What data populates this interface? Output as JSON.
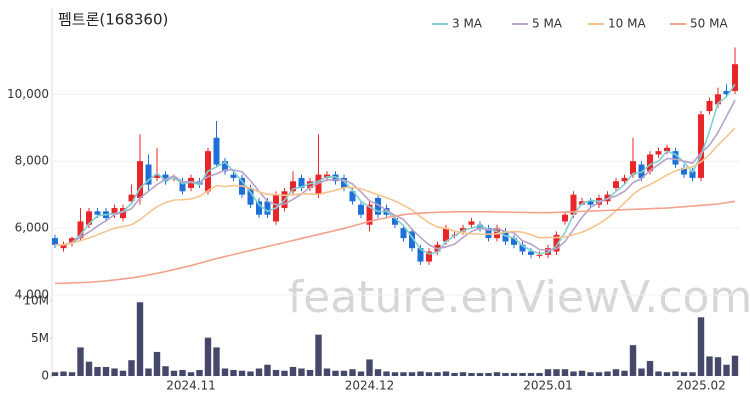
{
  "chart_data": [
    {
      "type": "candlestick",
      "title": "펨트론(168360)",
      "watermark": "feature.enViewV.com",
      "up_color": "#e8262a",
      "down_color": "#1e6fd8",
      "ylim": [
        4000,
        12400
      ],
      "yticks": [
        {
          "value": 4000,
          "label": "4,000"
        },
        {
          "value": 6000,
          "label": "6,000"
        },
        {
          "value": 8000,
          "label": "8,000"
        },
        {
          "value": 10000,
          "label": "10,000"
        }
      ],
      "open": [
        5700,
        5400,
        5550,
        5700,
        6100,
        6500,
        6500,
        6400,
        6300,
        6800,
        6900,
        7900,
        7500,
        7600,
        7500,
        7400,
        7200,
        7400,
        7100,
        8700,
        8000,
        7600,
        7500,
        7200,
        6800,
        6800,
        6200,
        6600,
        7100,
        7500,
        7200,
        7000,
        7500,
        7600,
        7500,
        7100,
        6700,
        6100,
        6900,
        6600,
        6300,
        6000,
        5900,
        5400,
        5000,
        5300,
        5600,
        5800,
        5900,
        6100,
        6100,
        6000,
        5700,
        5900,
        5700,
        5500,
        5300,
        5200,
        5200,
        5300,
        6200,
        6400,
        6700,
        6800,
        6700,
        6800,
        7200,
        7400,
        7600,
        7900,
        7700,
        8200,
        8300,
        8300,
        7800,
        7700,
        7500,
        9500,
        9700,
        10100,
        10100
      ],
      "high": [
        5800,
        5600,
        5750,
        6600,
        6600,
        6600,
        6600,
        6700,
        6700,
        7300,
        8800,
        8200,
        8400,
        7700,
        7600,
        7500,
        7600,
        7500,
        8400,
        9200,
        8100,
        7700,
        7600,
        7300,
        6900,
        6900,
        7100,
        7200,
        7700,
        7600,
        7500,
        8800,
        7700,
        7700,
        7600,
        7200,
        6800,
        6800,
        7000,
        6700,
        6400,
        6100,
        6000,
        5500,
        5400,
        5600,
        6100,
        5900,
        6100,
        6300,
        6200,
        6100,
        6100,
        6000,
        5800,
        5600,
        5400,
        5300,
        5500,
        5900,
        6500,
        7100,
        6900,
        6900,
        7000,
        7100,
        7500,
        7600,
        8700,
        8000,
        8300,
        8400,
        8500,
        8400,
        7900,
        7800,
        9500,
        9900,
        10200,
        10300,
        11400
      ],
      "low": [
        5400,
        5300,
        5450,
        5600,
        6000,
        6300,
        6200,
        6300,
        6200,
        6700,
        6700,
        7100,
        7400,
        7300,
        7400,
        7000,
        7100,
        7200,
        7000,
        7800,
        7600,
        7400,
        6900,
        6600,
        6300,
        6300,
        6100,
        6500,
        7000,
        7100,
        7100,
        6900,
        7400,
        7300,
        7100,
        6700,
        6300,
        5900,
        6300,
        6300,
        6000,
        5600,
        5300,
        4900,
        4900,
        5200,
        5500,
        5700,
        5800,
        6000,
        5900,
        5600,
        5600,
        5500,
        5400,
        5200,
        5100,
        5100,
        5100,
        5200,
        6100,
        6300,
        6700,
        6600,
        6600,
        6700,
        7100,
        7300,
        7500,
        7400,
        7600,
        8100,
        8200,
        7800,
        7500,
        7400,
        7400,
        9400,
        9600,
        9900,
        10000
      ],
      "close": [
        5500,
        5500,
        5700,
        6200,
        6500,
        6400,
        6300,
        6600,
        6600,
        7000,
        8000,
        7300,
        7600,
        7400,
        7500,
        7100,
        7500,
        7300,
        8300,
        7900,
        7700,
        7500,
        7000,
        6700,
        6400,
        6400,
        7000,
        7100,
        7400,
        7200,
        7400,
        7600,
        7600,
        7400,
        7200,
        6800,
        6400,
        6700,
        6400,
        6400,
        6100,
        5700,
        5400,
        5000,
        5300,
        5500,
        6000,
        5800,
        6000,
        6200,
        6000,
        5700,
        6000,
        5600,
        5500,
        5300,
        5200,
        5200,
        5400,
        5800,
        6400,
        7000,
        6800,
        6700,
        6900,
        7000,
        7400,
        7500,
        8000,
        7500,
        8200,
        8300,
        8400,
        7900,
        7600,
        7500,
        9400,
        9800,
        10000,
        10000,
        10900
      ],
      "series": [
        {
          "name": "3 MA",
          "color": "#7fd0d0",
          "values": [
            5500,
            5500,
            5570,
            5800,
            6130,
            6370,
            6400,
            6430,
            6500,
            6730,
            7200,
            7430,
            7630,
            7430,
            7500,
            7330,
            7370,
            7300,
            7700,
            7830,
            7970,
            7700,
            7400,
            7070,
            6700,
            6500,
            6600,
            6830,
            7170,
            7230,
            7330,
            7400,
            7530,
            7530,
            7400,
            7130,
            6800,
            6630,
            6500,
            6500,
            6300,
            6070,
            5730,
            5370,
            5230,
            5270,
            5600,
            5770,
            5930,
            6000,
            6070,
            5970,
            5900,
            5770,
            5700,
            5470,
            5330,
            5230,
            5270,
            5470,
            5870,
            6400,
            6730,
            6830,
            6800,
            6870,
            7100,
            7300,
            7630,
            7670,
            7900,
            8000,
            8300,
            8200,
            7970,
            7670,
            8170,
            8900,
            9730,
            9930,
            10300
          ]
        },
        {
          "name": "5 MA",
          "color": "#b8a2c8",
          "values": [
            5500,
            5500,
            5570,
            5730,
            5880,
            6060,
            6220,
            6400,
            6480,
            6580,
            6900,
            7100,
            7300,
            7460,
            7560,
            7380,
            7380,
            7360,
            7540,
            7620,
            7740,
            7740,
            7680,
            7420,
            7100,
            6800,
            6700,
            6720,
            6860,
            7020,
            7220,
            7340,
            7440,
            7440,
            7440,
            7320,
            7080,
            6820,
            6700,
            6540,
            6380,
            6260,
            5960,
            5720,
            5500,
            5380,
            5440,
            5520,
            5720,
            5900,
            6000,
            5940,
            5980,
            5900,
            5860,
            5620,
            5520,
            5360,
            5340,
            5380,
            5600,
            5960,
            6320,
            6620,
            6760,
            6880,
            6960,
            7100,
            7360,
            7480,
            7720,
            7900,
            8080,
            8060,
            8000,
            7940,
            8240,
            8480,
            8860,
            9340,
            9820
          ]
        },
        {
          "name": "10 MA",
          "color": "#f5c48e",
          "values": [
            5500,
            5500,
            5550,
            5630,
            5700,
            5800,
            5900,
            6000,
            6050,
            6100,
            6250,
            6450,
            6640,
            6760,
            6840,
            6850,
            6870,
            6950,
            7120,
            7270,
            7240,
            7270,
            7260,
            7190,
            7080,
            7010,
            7000,
            6980,
            6990,
            7030,
            7020,
            7010,
            7070,
            7130,
            7210,
            7220,
            7170,
            7090,
            6990,
            6910,
            6810,
            6680,
            6540,
            6340,
            6160,
            6030,
            5990,
            5910,
            5860,
            5830,
            5820,
            5820,
            5830,
            5880,
            5900,
            5880,
            5800,
            5710,
            5720,
            5720,
            5730,
            5800,
            5880,
            5990,
            6130,
            6300,
            6520,
            6750,
            7010,
            7190,
            7300,
            7440,
            7590,
            7710,
            7780,
            7830,
            7980,
            8200,
            8480,
            8730,
            9000
          ]
        },
        {
          "name": "50 MA",
          "color": "#f4a28c",
          "values": [
            4350,
            4350,
            4360,
            4370,
            4380,
            4400,
            4420,
            4450,
            4480,
            4510,
            4550,
            4600,
            4650,
            4700,
            4760,
            4820,
            4880,
            4950,
            5020,
            5090,
            5150,
            5210,
            5270,
            5330,
            5390,
            5450,
            5510,
            5570,
            5630,
            5690,
            5750,
            5810,
            5870,
            5930,
            5990,
            6060,
            6130,
            6200,
            6260,
            6310,
            6360,
            6400,
            6430,
            6450,
            6460,
            6470,
            6480,
            6490,
            6490,
            6490,
            6490,
            6490,
            6480,
            6480,
            6470,
            6470,
            6460,
            6460,
            6460,
            6470,
            6480,
            6490,
            6500,
            6510,
            6520,
            6530,
            6540,
            6550,
            6560,
            6570,
            6580,
            6590,
            6600,
            6620,
            6640,
            6660,
            6680,
            6700,
            6720,
            6760,
            6800
          ]
        }
      ]
    },
    {
      "type": "bar",
      "color": "#45486a",
      "ylim": [
        0,
        10500000
      ],
      "yticks": [
        0,
        {
          "value": 5000000,
          "label": "5M"
        },
        {
          "value": 10000000,
          "label": "10M"
        }
      ],
      "categories": [
        null,
        null,
        null,
        null,
        null,
        null,
        null,
        null,
        null,
        null,
        null,
        null,
        null,
        null,
        null,
        null,
        "2024.11",
        null,
        null,
        null,
        null,
        null,
        null,
        null,
        null,
        null,
        null,
        null,
        null,
        null,
        null,
        null,
        null,
        null,
        null,
        null,
        null,
        "2024.12",
        null,
        null,
        null,
        null,
        null,
        null,
        null,
        null,
        null,
        null,
        null,
        null,
        null,
        null,
        null,
        null,
        null,
        null,
        null,
        null,
        "2025.01",
        null,
        null,
        null,
        null,
        null,
        null,
        null,
        null,
        null,
        null,
        null,
        null,
        null,
        null,
        null,
        null,
        null,
        "2025.02",
        null,
        null,
        null,
        null
      ],
      "values": [
        500000,
        600000,
        500000,
        3800000,
        1900000,
        1200000,
        1200000,
        1000000,
        700000,
        2100000,
        9800000,
        1000000,
        3200000,
        1300000,
        700000,
        800000,
        500000,
        800000,
        5100000,
        3800000,
        1000000,
        800000,
        700000,
        600000,
        1000000,
        1500000,
        800000,
        700000,
        1200000,
        1000000,
        800000,
        5500000,
        1000000,
        700000,
        700000,
        900000,
        600000,
        2200000,
        900000,
        600000,
        500000,
        500000,
        500000,
        600000,
        500000,
        500000,
        600000,
        400000,
        500000,
        400000,
        400000,
        400000,
        500000,
        400000,
        400000,
        400000,
        400000,
        400000,
        900000,
        900000,
        900000,
        600000,
        700000,
        500000,
        500000,
        600000,
        900000,
        700000,
        4100000,
        1000000,
        2000000,
        600000,
        500000,
        600000,
        500000,
        500000,
        7800000,
        2600000,
        2500000,
        1500000,
        2700000
      ]
    }
  ]
}
